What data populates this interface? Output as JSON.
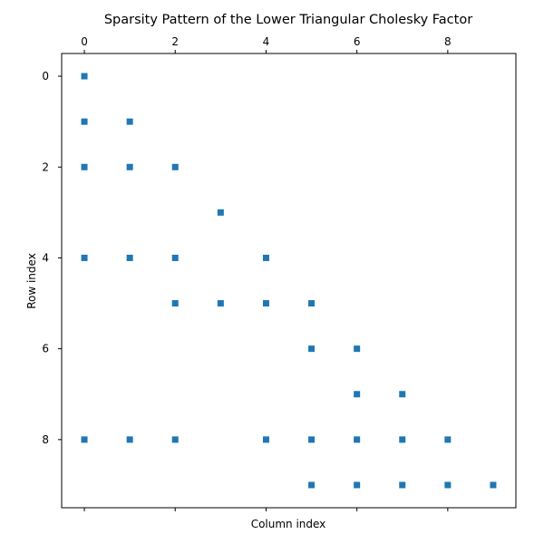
{
  "chart_data": {
    "type": "scatter",
    "title": "Sparsity Pattern of the Lower Triangular Cholesky Factor",
    "xlabel": "Column index",
    "ylabel": "Row index",
    "xlim": [
      -0.5,
      9.5
    ],
    "ylim": [
      9.5,
      -0.5
    ],
    "x_ticks": [
      0,
      2,
      4,
      6,
      8
    ],
    "x_tick_labels": [
      "0",
      "2",
      "4",
      "6",
      "8"
    ],
    "x_tick_position": "top",
    "y_ticks": [
      0,
      2,
      4,
      6,
      8
    ],
    "y_tick_labels": [
      "0",
      "2",
      "4",
      "6",
      "8"
    ],
    "y_axis_inverted": true,
    "marker": "square",
    "grid": false,
    "legend": "none",
    "color": "#1f77b4",
    "points": [
      {
        "row": 0,
        "col": 0
      },
      {
        "row": 1,
        "col": 0
      },
      {
        "row": 1,
        "col": 1
      },
      {
        "row": 2,
        "col": 0
      },
      {
        "row": 2,
        "col": 1
      },
      {
        "row": 2,
        "col": 2
      },
      {
        "row": 3,
        "col": 3
      },
      {
        "row": 4,
        "col": 0
      },
      {
        "row": 4,
        "col": 1
      },
      {
        "row": 4,
        "col": 2
      },
      {
        "row": 4,
        "col": 4
      },
      {
        "row": 5,
        "col": 2
      },
      {
        "row": 5,
        "col": 3
      },
      {
        "row": 5,
        "col": 4
      },
      {
        "row": 5,
        "col": 5
      },
      {
        "row": 6,
        "col": 5
      },
      {
        "row": 6,
        "col": 6
      },
      {
        "row": 7,
        "col": 6
      },
      {
        "row": 7,
        "col": 7
      },
      {
        "row": 8,
        "col": 0
      },
      {
        "row": 8,
        "col": 1
      },
      {
        "row": 8,
        "col": 2
      },
      {
        "row": 8,
        "col": 4
      },
      {
        "row": 8,
        "col": 5
      },
      {
        "row": 8,
        "col": 6
      },
      {
        "row": 8,
        "col": 7
      },
      {
        "row": 8,
        "col": 8
      },
      {
        "row": 9,
        "col": 5
      },
      {
        "row": 9,
        "col": 6
      },
      {
        "row": 9,
        "col": 7
      },
      {
        "row": 9,
        "col": 8
      },
      {
        "row": 9,
        "col": 9
      }
    ]
  }
}
